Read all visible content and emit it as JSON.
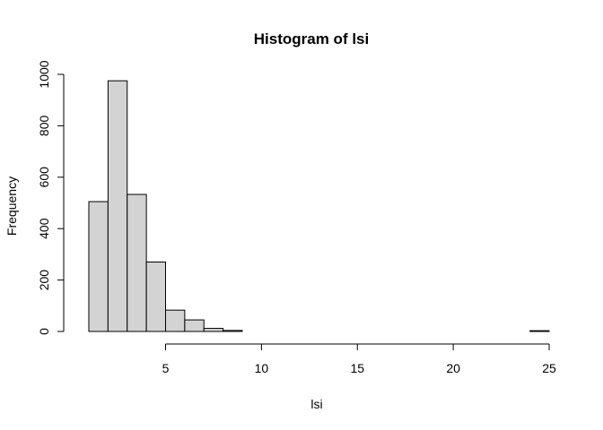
{
  "chart_data": {
    "type": "bar",
    "title": "Histogram of lsi",
    "xlabel": "lsi",
    "ylabel": "Frequency",
    "bin_width": 1,
    "bins": [
      {
        "start": 1,
        "end": 2,
        "count": 505
      },
      {
        "start": 2,
        "end": 3,
        "count": 975
      },
      {
        "start": 3,
        "end": 4,
        "count": 533
      },
      {
        "start": 4,
        "end": 5,
        "count": 270
      },
      {
        "start": 5,
        "end": 6,
        "count": 83
      },
      {
        "start": 6,
        "end": 7,
        "count": 45
      },
      {
        "start": 7,
        "end": 8,
        "count": 12
      },
      {
        "start": 8,
        "end": 9,
        "count": 4
      },
      {
        "start": 9,
        "end": 10,
        "count": 0
      },
      {
        "start": 10,
        "end": 11,
        "count": 0
      },
      {
        "start": 11,
        "end": 12,
        "count": 0
      },
      {
        "start": 12,
        "end": 13,
        "count": 0
      },
      {
        "start": 13,
        "end": 14,
        "count": 0
      },
      {
        "start": 14,
        "end": 15,
        "count": 0
      },
      {
        "start": 15,
        "end": 16,
        "count": 0
      },
      {
        "start": 16,
        "end": 17,
        "count": 0
      },
      {
        "start": 17,
        "end": 18,
        "count": 0
      },
      {
        "start": 18,
        "end": 19,
        "count": 0
      },
      {
        "start": 19,
        "end": 20,
        "count": 0
      },
      {
        "start": 20,
        "end": 21,
        "count": 0
      },
      {
        "start": 21,
        "end": 22,
        "count": 0
      },
      {
        "start": 22,
        "end": 23,
        "count": 0
      },
      {
        "start": 23,
        "end": 24,
        "count": 0
      },
      {
        "start": 24,
        "end": 25,
        "count": 3
      }
    ],
    "xlim": [
      1,
      25
    ],
    "ylim": [
      0,
      1000
    ],
    "x_ticks": [
      "5",
      "10",
      "15",
      "20",
      "25"
    ],
    "y_ticks": [
      "0",
      "200",
      "400",
      "600",
      "800",
      "1000"
    ],
    "bar_fill": "#d3d3d3",
    "bar_stroke": "#000000",
    "grid": false,
    "legend": "none"
  }
}
